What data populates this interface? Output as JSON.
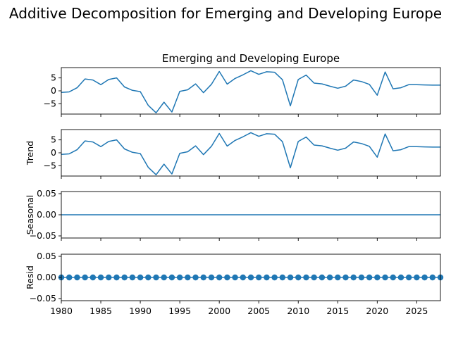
{
  "suptitle": "Additive Decomposition for Emerging and Developing Europe",
  "colors": {
    "line": "#1f77b4",
    "axis": "#000000",
    "background": "#ffffff"
  },
  "chart_data": [
    {
      "type": "line",
      "panel": "observed",
      "title": "Emerging and Developing Europe",
      "ylabel": "",
      "xlim": [
        1980,
        2028
      ],
      "ylim": [
        -9.0,
        9.0
      ],
      "yticks": [
        -5,
        0,
        5
      ],
      "xticks": [
        1980,
        1985,
        1990,
        1995,
        2000,
        2005,
        2010,
        2015,
        2020,
        2025
      ],
      "show_xticklabels": false,
      "x": [
        1980,
        1981,
        1982,
        1983,
        1984,
        1985,
        1986,
        1987,
        1988,
        1989,
        1990,
        1991,
        1992,
        1993,
        1994,
        1995,
        1996,
        1997,
        1998,
        1999,
        2000,
        2001,
        2002,
        2003,
        2004,
        2005,
        2006,
        2007,
        2008,
        2009,
        2010,
        2011,
        2012,
        2013,
        2014,
        2015,
        2016,
        2017,
        2018,
        2019,
        2020,
        2021,
        2022,
        2023,
        2024,
        2025,
        2026,
        2027,
        2028
      ],
      "series": [
        {
          "values": [
            -0.6,
            -0.4,
            1.2,
            4.6,
            4.2,
            2.4,
            4.4,
            5.0,
            1.5,
            0.2,
            -0.3,
            -5.6,
            -8.5,
            -4.4,
            -8.2,
            -0.2,
            0.4,
            2.7,
            -0.7,
            2.5,
            7.5,
            2.6,
            4.8,
            6.2,
            7.8,
            6.4,
            7.4,
            7.2,
            4.3,
            -5.8,
            4.4,
            6.1,
            3.0,
            2.7,
            1.8,
            1.0,
            1.8,
            4.2,
            3.6,
            2.5,
            -1.7,
            7.3,
            0.8,
            1.2,
            2.4,
            2.4,
            2.3,
            2.2,
            2.2
          ]
        }
      ]
    },
    {
      "type": "line",
      "panel": "trend",
      "title": "",
      "ylabel": "Trend",
      "xlim": [
        1980,
        2028
      ],
      "ylim": [
        -9.0,
        9.0
      ],
      "yticks": [
        -5,
        0,
        5
      ],
      "xticks": [
        1980,
        1985,
        1990,
        1995,
        2000,
        2005,
        2010,
        2015,
        2020,
        2025
      ],
      "show_xticklabels": false,
      "x": [
        1980,
        1981,
        1982,
        1983,
        1984,
        1985,
        1986,
        1987,
        1988,
        1989,
        1990,
        1991,
        1992,
        1993,
        1994,
        1995,
        1996,
        1997,
        1998,
        1999,
        2000,
        2001,
        2002,
        2003,
        2004,
        2005,
        2006,
        2007,
        2008,
        2009,
        2010,
        2011,
        2012,
        2013,
        2014,
        2015,
        2016,
        2017,
        2018,
        2019,
        2020,
        2021,
        2022,
        2023,
        2024,
        2025,
        2026,
        2027,
        2028
      ],
      "series": [
        {
          "values": [
            -0.6,
            -0.4,
            1.2,
            4.6,
            4.2,
            2.4,
            4.4,
            5.0,
            1.5,
            0.2,
            -0.3,
            -5.6,
            -8.5,
            -4.4,
            -8.2,
            -0.2,
            0.4,
            2.7,
            -0.7,
            2.5,
            7.5,
            2.6,
            4.8,
            6.2,
            7.8,
            6.4,
            7.4,
            7.2,
            4.3,
            -5.8,
            4.4,
            6.1,
            3.0,
            2.7,
            1.8,
            1.0,
            1.8,
            4.2,
            3.6,
            2.5,
            -1.7,
            7.3,
            0.8,
            1.2,
            2.4,
            2.4,
            2.3,
            2.2,
            2.2
          ]
        }
      ]
    },
    {
      "type": "line",
      "panel": "seasonal",
      "title": "",
      "ylabel": "Seasonal",
      "xlim": [
        1980,
        2028
      ],
      "ylim": [
        -0.055,
        0.055
      ],
      "yticks": [
        -0.05,
        0.0,
        0.05
      ],
      "yticklabels": [
        "−0.05",
        "0.00",
        "0.05"
      ],
      "xticks": [
        1980,
        1985,
        1990,
        1995,
        2000,
        2005,
        2010,
        2015,
        2020,
        2025
      ],
      "show_xticklabels": false,
      "x": [
        1980,
        2028
      ],
      "series": [
        {
          "values": [
            0,
            0
          ]
        }
      ]
    },
    {
      "type": "scatter",
      "panel": "resid",
      "title": "",
      "ylabel": "Resid",
      "xlim": [
        1980,
        2028
      ],
      "ylim": [
        -0.055,
        0.055
      ],
      "yticks": [
        -0.05,
        0.0,
        0.05
      ],
      "yticklabels": [
        "−0.05",
        "0.00",
        "0.05"
      ],
      "xticks": [
        1980,
        1985,
        1990,
        1995,
        2000,
        2005,
        2010,
        2015,
        2020,
        2025
      ],
      "xticklabels": [
        "1980",
        "1985",
        "1990",
        "1995",
        "2000",
        "2005",
        "2010",
        "2015",
        "2020",
        "2025"
      ],
      "show_xticklabels": true,
      "baseline": 0,
      "x": [
        1980,
        1981,
        1982,
        1983,
        1984,
        1985,
        1986,
        1987,
        1988,
        1989,
        1990,
        1991,
        1992,
        1993,
        1994,
        1995,
        1996,
        1997,
        1998,
        1999,
        2000,
        2001,
        2002,
        2003,
        2004,
        2005,
        2006,
        2007,
        2008,
        2009,
        2010,
        2011,
        2012,
        2013,
        2014,
        2015,
        2016,
        2017,
        2018,
        2019,
        2020,
        2021,
        2022,
        2023,
        2024,
        2025,
        2026,
        2027,
        2028
      ],
      "series": [
        {
          "values": [
            0,
            0,
            0,
            0,
            0,
            0,
            0,
            0,
            0,
            0,
            0,
            0,
            0,
            0,
            0,
            0,
            0,
            0,
            0,
            0,
            0,
            0,
            0,
            0,
            0,
            0,
            0,
            0,
            0,
            0,
            0,
            0,
            0,
            0,
            0,
            0,
            0,
            0,
            0,
            0,
            0,
            0,
            0,
            0,
            0,
            0,
            0,
            0,
            0
          ]
        }
      ]
    }
  ]
}
